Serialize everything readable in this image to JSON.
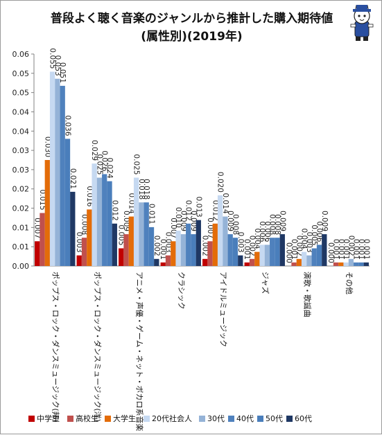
{
  "title_line1": "普段よく聴く音楽のジャンルから推計した購入期待値",
  "title_line2": "(属性別)(2019年)",
  "chart_data": {
    "type": "bar",
    "categories": [
      "ポップス・ロック・ダンスミュージック(邦)",
      "ポップス・ロック・ダンスミュージック(洋)",
      "アニメ・声優・ゲーム・ネット・ボカロ系音楽",
      "クラシック",
      "アイドルミュージック",
      "ジャズ",
      "演歌・歌謡曲",
      "その他"
    ],
    "series": [
      {
        "name": "中学生",
        "color": "#c00000",
        "values": [
          0.007,
          0.003,
          0.005,
          0.001,
          0.002,
          0.001,
          0.0,
          0.0
        ],
        "labels": [
          "0.007",
          "0.003",
          "0.005",
          "0.001",
          "0.002",
          "0.001",
          "0.000",
          "0.000"
        ]
      },
      {
        "name": "高校生",
        "color": "#c0504d",
        "values": [
          0.015,
          0.008,
          0.009,
          0.003,
          0.007,
          0.002,
          0.001,
          0.001
        ],
        "labels": [
          "0.015",
          "0.008",
          "0.009",
          "0.003",
          "0.007",
          "0.002",
          "0.001",
          "0.001"
        ]
      },
      {
        "name": "大学生",
        "color": "#e36c09",
        "values": [
          0.03,
          0.016,
          0.014,
          0.007,
          0.012,
          0.004,
          0.002,
          0.001
        ],
        "labels": [
          "0.030",
          "0.016",
          "0.014",
          "0.007",
          "0.012",
          "0.004",
          "0.002",
          "0.001"
        ]
      },
      {
        "name": "20代社会人",
        "color": "#c6d9f1",
        "values": [
          0.055,
          0.029,
          0.025,
          0.01,
          0.02,
          0.006,
          0.004,
          0.001
        ],
        "labels": [
          "0.055",
          "0.029",
          "0.025",
          "0.010",
          "0.020",
          "0.006",
          "0.004",
          "0.001"
        ]
      },
      {
        "name": "30代",
        "color": "#95b3d7",
        "values": [
          0.053,
          0.025,
          0.018,
          0.009,
          0.014,
          0.006,
          0.003,
          0.002
        ],
        "labels": [
          "0.053",
          "0.025",
          "0.018",
          "0.009",
          "0.014",
          "0.006",
          "0.003",
          "0.002"
        ]
      },
      {
        "name": "40代",
        "color": "#4f81bd",
        "values": [
          0.051,
          0.026,
          0.018,
          0.012,
          0.009,
          0.008,
          0.005,
          0.001
        ],
        "labels": [
          "0.051",
          "0.026",
          "0.018",
          "0.012",
          "0.009",
          "0.008",
          "0.005",
          "0.001"
        ]
      },
      {
        "name": "50代",
        "color": "#4a7ebb",
        "values": [
          0.036,
          0.024,
          0.011,
          0.009,
          0.008,
          0.008,
          0.006,
          0.001
        ],
        "labels": [
          "0.036",
          "0.024",
          "0.011",
          "0.009",
          "0.008",
          "0.008",
          "0.006",
          "0.001"
        ]
      },
      {
        "name": "60代",
        "color": "#1f3864",
        "values": [
          0.021,
          0.012,
          0.002,
          0.013,
          0.003,
          0.009,
          0.009,
          0.001
        ],
        "labels": [
          "0.021",
          "0.012",
          "0.002",
          "0.013",
          "0.003",
          "0.009",
          "0.009",
          "0.001"
        ]
      }
    ],
    "y_ticks": [
      "0.00",
      "0.01",
      "0.01",
      "0.02",
      "0.02",
      "0.03",
      "0.03",
      "0.04",
      "0.04",
      "0.05",
      "0.05",
      "0.06"
    ],
    "ylim": [
      0,
      0.06
    ],
    "grid": false,
    "legend_position": "bottom"
  }
}
